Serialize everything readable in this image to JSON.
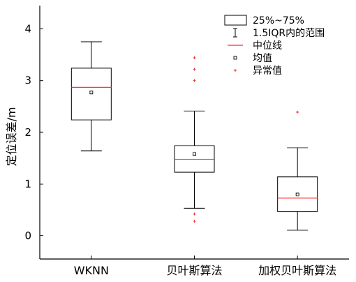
{
  "chart_data": {
    "type": "box",
    "ylabel": "定位误差/m",
    "ylim": [
      -0.45,
      4.45
    ],
    "yticks": [
      0,
      1,
      2,
      3,
      4
    ],
    "categories": [
      "WKNN",
      "贝叶斯算法",
      "加权贝叶斯算法"
    ],
    "boxes": [
      {
        "whisker_low": 1.64,
        "q1": 2.24,
        "median": 2.87,
        "q3": 3.24,
        "whisker_high": 3.75,
        "mean": 2.77,
        "outliers": []
      },
      {
        "whisker_low": 0.53,
        "q1": 1.23,
        "median": 1.47,
        "q3": 1.74,
        "whisker_high": 2.41,
        "mean": 1.58,
        "outliers": [
          3.44,
          3.22,
          3.0,
          0.42,
          0.28
        ]
      },
      {
        "whisker_low": 0.11,
        "q1": 0.47,
        "median": 0.73,
        "q3": 1.14,
        "whisker_high": 1.7,
        "mean": 0.8,
        "outliers": [
          2.39
        ]
      }
    ],
    "legend": {
      "position": "top-right",
      "items": [
        {
          "label": "25%~75%",
          "symbol": "box"
        },
        {
          "label": "1.5IQR内的范围",
          "symbol": "whisker"
        },
        {
          "label": "中位线",
          "symbol": "median"
        },
        {
          "label": "均值",
          "symbol": "mean"
        },
        {
          "label": "异常值",
          "symbol": "outlier"
        }
      ]
    },
    "colors": {
      "median": "#ff2a2a",
      "outlier": "#e8353a",
      "box": "#000000"
    }
  }
}
